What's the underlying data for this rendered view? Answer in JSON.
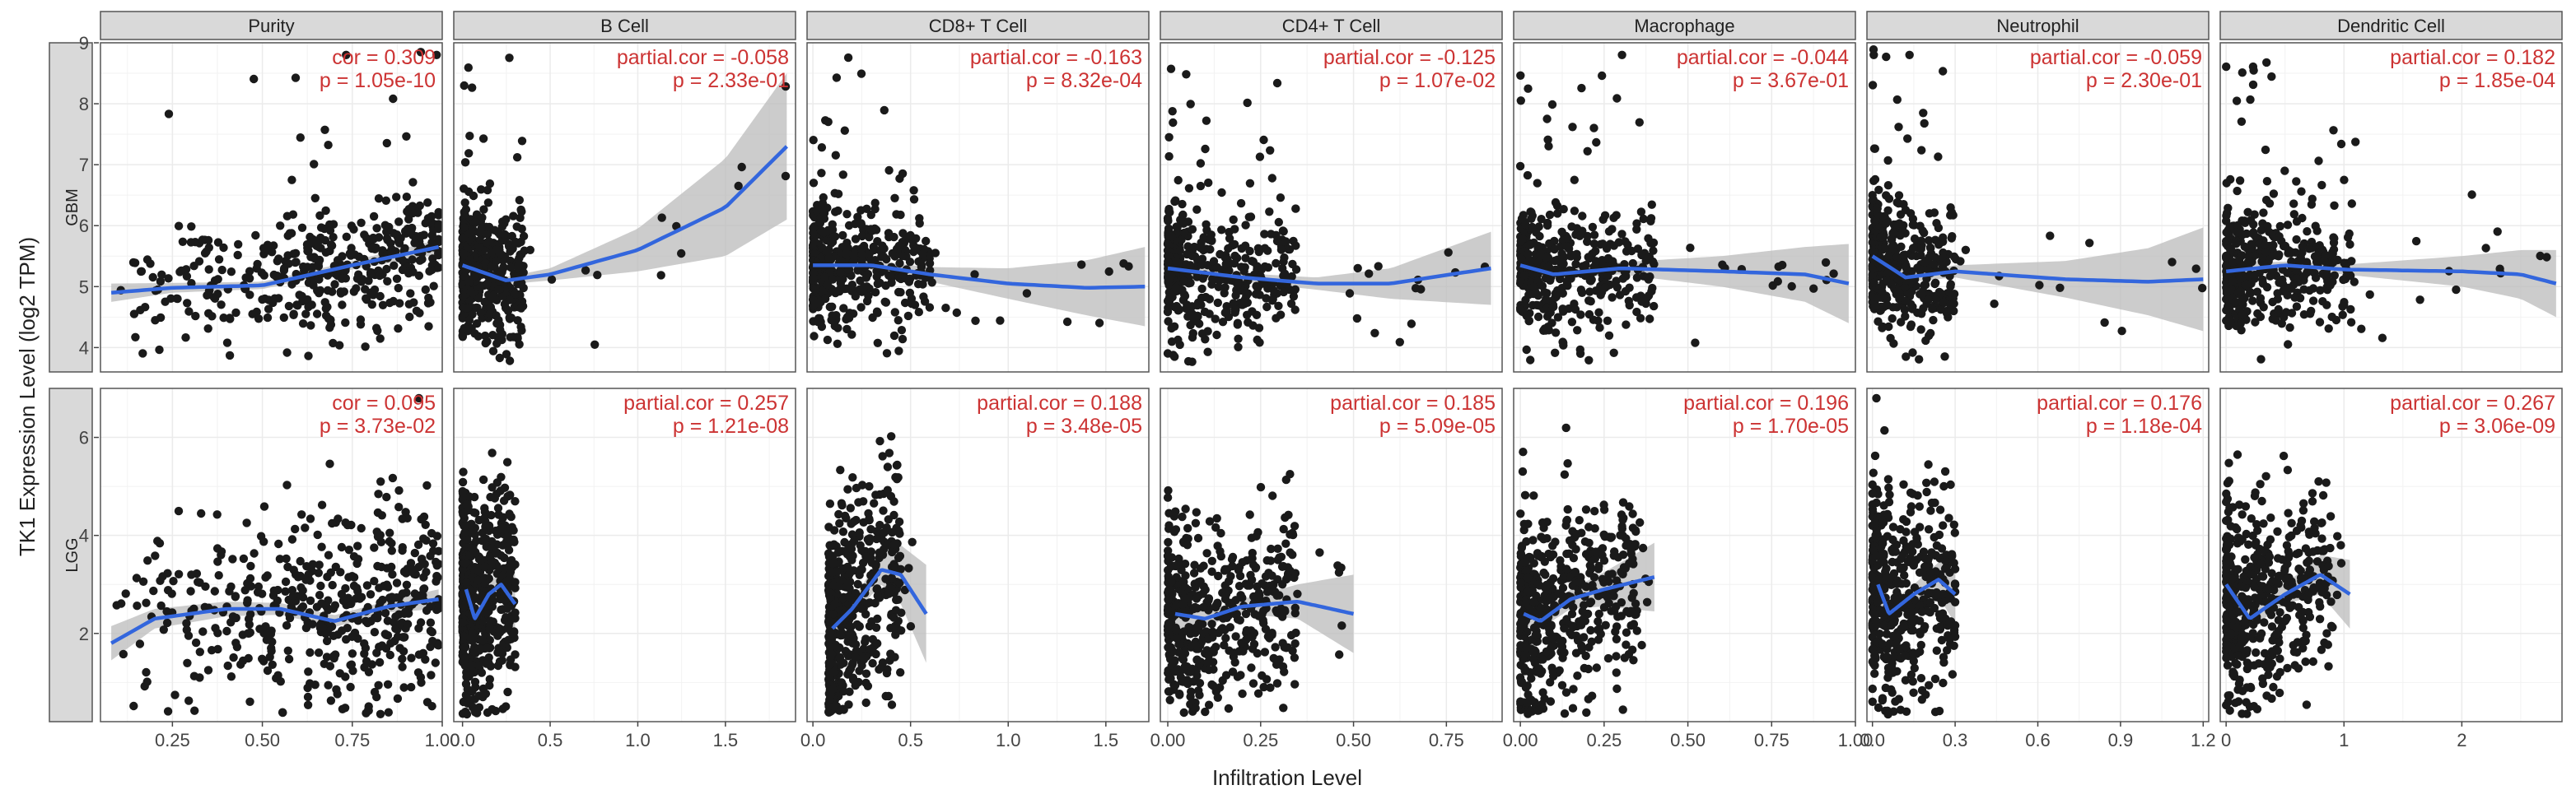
{
  "chart_data": {
    "type": "scatter",
    "title": "",
    "xlabel": "Infiltration Level",
    "ylabel": "TK1 Expression Level (log2 TPM)",
    "colors": {
      "points": "#1a1a1a",
      "fit_line": "#3366dd",
      "confidence_band": "#bbbbbb",
      "annotation": "#cc3333",
      "strip_fill": "#d9d9d9",
      "grid": "#ebebeb"
    },
    "columns": [
      {
        "label": "Purity",
        "xlim": [
          0.05,
          1.0
        ],
        "xticks": [
          0.25,
          0.5,
          0.75,
          1.0
        ],
        "xtick_labels": [
          "0.25",
          "0.50",
          "0.75",
          "1.00"
        ]
      },
      {
        "label": "B Cell",
        "xlim": [
          -0.05,
          1.9
        ],
        "xticks": [
          0.0,
          0.5,
          1.0,
          1.5
        ],
        "xtick_labels": [
          "0.0",
          "0.5",
          "1.0",
          "1.5"
        ]
      },
      {
        "label": "CD8+ T Cell",
        "xlim": [
          -0.03,
          1.72
        ],
        "xticks": [
          0.0,
          0.5,
          1.0,
          1.5
        ],
        "xtick_labels": [
          "0.0",
          "0.5",
          "1.0",
          "1.5"
        ]
      },
      {
        "label": "CD4+ T Cell",
        "xlim": [
          -0.02,
          0.9
        ],
        "xticks": [
          0.0,
          0.25,
          0.5,
          0.75
        ],
        "xtick_labels": [
          "0.00",
          "0.25",
          "0.50",
          "0.75"
        ]
      },
      {
        "label": "Macrophage",
        "xlim": [
          -0.02,
          1.0
        ],
        "xticks": [
          0.0,
          0.25,
          0.5,
          0.75,
          1.0
        ],
        "xtick_labels": [
          "0.00",
          "0.25",
          "0.50",
          "0.75",
          "1.00"
        ]
      },
      {
        "label": "Neutrophil",
        "xlim": [
          -0.02,
          1.22
        ],
        "xticks": [
          0.0,
          0.3,
          0.6,
          0.9,
          1.2
        ],
        "xtick_labels": [
          "0.0",
          "0.3",
          "0.6",
          "0.9",
          "1.2"
        ]
      },
      {
        "label": "Dendritic Cell",
        "xlim": [
          -0.05,
          2.85
        ],
        "xticks": [
          0,
          1,
          2
        ],
        "xtick_labels": [
          "0",
          "1",
          "2"
        ]
      }
    ],
    "rows": [
      {
        "label": "GBM",
        "ylim": [
          3.6,
          9.0
        ],
        "yticks": [
          4,
          5,
          6,
          7,
          8,
          9
        ],
        "ytick_labels": [
          "4",
          "5",
          "6",
          "7",
          "8",
          "9"
        ],
        "panels": [
          {
            "cor_text": "cor = 0.309",
            "p_text": "p = 1.05e-10",
            "x_range": [
              0.08,
              0.99
            ],
            "y_center": 5.1,
            "y_spread": 0.55,
            "fit": [
              [
                0.08,
                4.9
              ],
              [
                0.25,
                4.98
              ],
              [
                0.5,
                5.02
              ],
              [
                0.75,
                5.35
              ],
              [
                0.99,
                5.65
              ]
            ],
            "band": [
              0.15,
              0.08,
              0.06,
              0.07,
              0.12
            ]
          },
          {
            "cor_text": "partial.cor = -0.058",
            "p_text": "p = 2.33e-01",
            "x_range": [
              0.0,
              0.35
            ],
            "y_center": 5.2,
            "y_spread": 0.6,
            "fit": [
              [
                0.0,
                5.35
              ],
              [
                0.25,
                5.1
              ],
              [
                0.5,
                5.2
              ],
              [
                1.0,
                5.6
              ],
              [
                1.5,
                6.3
              ],
              [
                1.85,
                7.3
              ]
            ],
            "band": [
              0.12,
              0.06,
              0.1,
              0.35,
              0.8,
              1.2
            ]
          },
          {
            "cor_text": "partial.cor = -0.163",
            "p_text": "p = 8.32e-04",
            "x_range": [
              0.0,
              0.6
            ],
            "y_center": 5.2,
            "y_spread": 0.6,
            "fit": [
              [
                0.0,
                5.35
              ],
              [
                0.3,
                5.35
              ],
              [
                0.6,
                5.2
              ],
              [
                1.0,
                5.05
              ],
              [
                1.4,
                4.98
              ],
              [
                1.7,
                5.0
              ]
            ],
            "band": [
              0.12,
              0.07,
              0.12,
              0.25,
              0.45,
              0.65
            ]
          },
          {
            "cor_text": "partial.cor = -0.125",
            "p_text": "p = 1.07e-02",
            "x_range": [
              0.0,
              0.35
            ],
            "y_center": 5.1,
            "y_spread": 0.6,
            "fit": [
              [
                0.0,
                5.3
              ],
              [
                0.2,
                5.15
              ],
              [
                0.4,
                5.05
              ],
              [
                0.6,
                5.05
              ],
              [
                0.87,
                5.3
              ]
            ],
            "band": [
              0.15,
              0.07,
              0.1,
              0.25,
              0.6
            ]
          },
          {
            "cor_text": "partial.cor = -0.044",
            "p_text": "p = 3.67e-01",
            "x_range": [
              0.0,
              0.4
            ],
            "y_center": 5.1,
            "y_spread": 0.6,
            "fit": [
              [
                0.0,
                5.35
              ],
              [
                0.1,
                5.2
              ],
              [
                0.3,
                5.3
              ],
              [
                0.6,
                5.25
              ],
              [
                0.85,
                5.2
              ],
              [
                0.98,
                5.05
              ]
            ],
            "band": [
              0.15,
              0.08,
              0.1,
              0.25,
              0.45,
              0.65
            ]
          },
          {
            "cor_text": "partial.cor = -0.059",
            "p_text": "p = 2.30e-01",
            "x_range": [
              0.0,
              0.3
            ],
            "y_center": 5.2,
            "y_spread": 0.6,
            "fit": [
              [
                0.0,
                5.5
              ],
              [
                0.12,
                5.15
              ],
              [
                0.3,
                5.25
              ],
              [
                0.7,
                5.12
              ],
              [
                1.0,
                5.08
              ],
              [
                1.2,
                5.12
              ]
            ],
            "band": [
              0.2,
              0.08,
              0.1,
              0.3,
              0.55,
              0.85
            ]
          },
          {
            "cor_text": "partial.cor = 0.182",
            "p_text": "p = 1.85e-04",
            "x_range": [
              0.0,
              1.1
            ],
            "y_center": 5.2,
            "y_spread": 0.6,
            "fit": [
              [
                0.0,
                5.25
              ],
              [
                0.5,
                5.35
              ],
              [
                1.0,
                5.28
              ],
              [
                2.0,
                5.25
              ],
              [
                2.5,
                5.2
              ],
              [
                2.8,
                5.05
              ]
            ],
            "band": [
              0.12,
              0.06,
              0.08,
              0.25,
              0.4,
              0.55
            ]
          }
        ]
      },
      {
        "label": "LGG",
        "ylim": [
          0.2,
          7.0
        ],
        "yticks": [
          2,
          4,
          6
        ],
        "ytick_labels": [
          "2",
          "4",
          "6"
        ],
        "panels": [
          {
            "cor_text": "cor = 0.095",
            "p_text": "p = 3.73e-02",
            "x_range": [
              0.08,
              0.99
            ],
            "y_center": 2.6,
            "y_spread": 1.0,
            "fit": [
              [
                0.08,
                1.8
              ],
              [
                0.2,
                2.3
              ],
              [
                0.4,
                2.5
              ],
              [
                0.55,
                2.5
              ],
              [
                0.7,
                2.25
              ],
              [
                0.85,
                2.55
              ],
              [
                0.99,
                2.7
              ]
            ],
            "band": [
              0.35,
              0.2,
              0.15,
              0.12,
              0.12,
              0.12,
              0.2
            ]
          },
          {
            "cor_text": "partial.cor = 0.257",
            "p_text": "p = 1.21e-08",
            "x_range": [
              0.0,
              0.3
            ],
            "y_center": 2.5,
            "y_spread": 1.1,
            "fit": [
              [
                0.02,
                2.9
              ],
              [
                0.07,
                2.3
              ],
              [
                0.15,
                2.8
              ],
              [
                0.22,
                3.0
              ],
              [
                0.3,
                2.6
              ]
            ],
            "band": [
              0.35,
              0.2,
              0.2,
              0.3,
              0.6
            ]
          },
          {
            "cor_text": "partial.cor = 0.188",
            "p_text": "p = 3.48e-05",
            "x_range": [
              0.08,
              0.45
            ],
            "y_center": 2.4,
            "y_spread": 1.1,
            "fit": [
              [
                0.1,
                2.1
              ],
              [
                0.2,
                2.5
              ],
              [
                0.35,
                3.3
              ],
              [
                0.45,
                3.2
              ],
              [
                0.58,
                2.4
              ]
            ],
            "band": [
              0.25,
              0.15,
              0.3,
              0.6,
              1.0
            ]
          },
          {
            "cor_text": "partial.cor = 0.185",
            "p_text": "p = 5.09e-05",
            "x_range": [
              0.0,
              0.35
            ],
            "y_center": 2.5,
            "y_spread": 1.0,
            "fit": [
              [
                0.02,
                2.4
              ],
              [
                0.1,
                2.3
              ],
              [
                0.2,
                2.55
              ],
              [
                0.35,
                2.65
              ],
              [
                0.5,
                2.4
              ]
            ],
            "band": [
              0.3,
              0.15,
              0.15,
              0.35,
              0.8
            ]
          },
          {
            "cor_text": "partial.cor = 0.196",
            "p_text": "p = 1.70e-05",
            "x_range": [
              0.0,
              0.35
            ],
            "y_center": 2.4,
            "y_spread": 1.0,
            "fit": [
              [
                0.01,
                2.4
              ],
              [
                0.06,
                2.25
              ],
              [
                0.15,
                2.7
              ],
              [
                0.25,
                2.9
              ],
              [
                0.4,
                3.15
              ]
            ],
            "band": [
              0.25,
              0.15,
              0.2,
              0.35,
              0.7
            ]
          },
          {
            "cor_text": "partial.cor = 0.176",
            "p_text": "p = 1.18e-04",
            "x_range": [
              0.0,
              0.3
            ],
            "y_center": 2.5,
            "y_spread": 1.1,
            "fit": [
              [
                0.02,
                3.0
              ],
              [
                0.06,
                2.4
              ],
              [
                0.15,
                2.8
              ],
              [
                0.24,
                3.1
              ],
              [
                0.3,
                2.8
              ]
            ],
            "band": [
              0.35,
              0.2,
              0.2,
              0.35,
              0.6
            ]
          },
          {
            "cor_text": "partial.cor = 0.267",
            "p_text": "p = 3.06e-09",
            "x_range": [
              0.0,
              0.9
            ],
            "y_center": 2.5,
            "y_spread": 1.1,
            "fit": [
              [
                0.0,
                3.0
              ],
              [
                0.2,
                2.3
              ],
              [
                0.5,
                2.8
              ],
              [
                0.8,
                3.2
              ],
              [
                1.05,
                2.8
              ]
            ],
            "band": [
              0.35,
              0.2,
              0.2,
              0.4,
              0.7
            ]
          }
        ]
      }
    ]
  }
}
